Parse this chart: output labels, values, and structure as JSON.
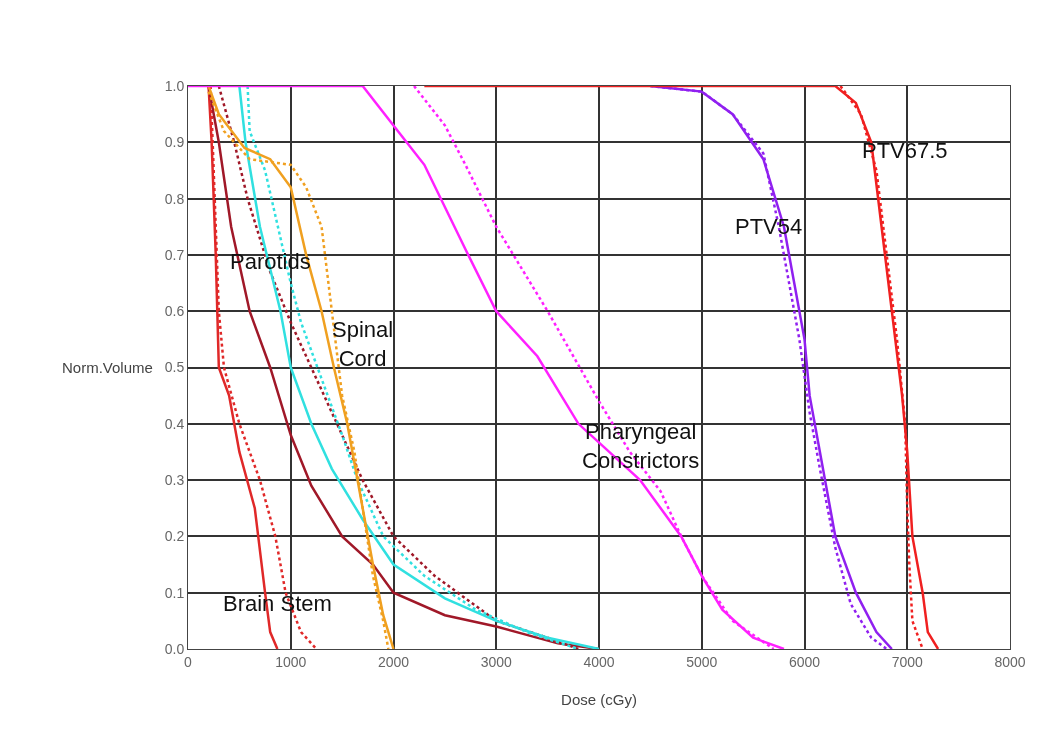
{
  "chart_data": {
    "type": "line",
    "xlabel": "Dose (cGy)",
    "ylabel": "Norm.Volume",
    "xlim": [
      0,
      8000
    ],
    "xticks": [
      0,
      1000,
      2000,
      3000,
      4000,
      5000,
      6000,
      7000,
      8000
    ],
    "ylim": [
      0,
      1
    ],
    "yticks": [
      {
        "value": 0,
        "label": "0.0"
      },
      0.1,
      0.2,
      0.3,
      0.4,
      0.5,
      0.6,
      0.7,
      0.8,
      0.9,
      {
        "value": 1,
        "label": "1.0"
      }
    ],
    "grid": true,
    "marker": "none",
    "series": [
      {
        "color": "#e02828",
        "line_style": "solid",
        "x": [
          200,
          230,
          270,
          300,
          400,
          500,
          650,
          750,
          800,
          870
        ],
        "values": [
          1.0,
          0.9,
          0.7,
          0.5,
          0.45,
          0.35,
          0.25,
          0.1,
          0.03,
          0.0
        ]
      },
      {
        "color": "#e02828",
        "line_style": "dotted",
        "x": [
          220,
          260,
          300,
          350,
          500,
          700,
          850,
          950,
          1100,
          1250
        ],
        "values": [
          1.0,
          0.8,
          0.6,
          0.5,
          0.4,
          0.3,
          0.2,
          0.1,
          0.03,
          0.0
        ]
      },
      {
        "color": "#a01828",
        "line_style": "solid",
        "x": [
          200,
          300,
          420,
          600,
          800,
          1000,
          1200,
          1500,
          1800,
          2000,
          2500,
          3000,
          3600,
          4000
        ],
        "values": [
          1.0,
          0.9,
          0.75,
          0.6,
          0.5,
          0.38,
          0.29,
          0.2,
          0.15,
          0.1,
          0.06,
          0.04,
          0.01,
          0.0
        ]
      },
      {
        "color": "#a01828",
        "line_style": "dotted",
        "x": [
          300,
          450,
          580,
          800,
          1000,
          1200,
          1500,
          1700,
          2000,
          2400,
          3000,
          3500,
          3800
        ],
        "values": [
          1.0,
          0.9,
          0.8,
          0.67,
          0.58,
          0.5,
          0.38,
          0.3,
          0.2,
          0.13,
          0.05,
          0.02,
          0.0
        ]
      },
      {
        "color": "#30e0e0",
        "line_style": "solid",
        "x": [
          500,
          560,
          700,
          900,
          1000,
          1200,
          1400,
          1700,
          2000,
          2500,
          3000,
          3500,
          4000
        ],
        "values": [
          1.0,
          0.9,
          0.75,
          0.6,
          0.5,
          0.4,
          0.32,
          0.23,
          0.15,
          0.09,
          0.05,
          0.02,
          0.0
        ]
      },
      {
        "color": "#30e0e0",
        "line_style": "dotted",
        "x": [
          580,
          600,
          750,
          850,
          1000,
          1100,
          1300,
          1500,
          1650,
          1900,
          2300,
          2800,
          3300,
          3800
        ],
        "values": [
          1.0,
          0.92,
          0.85,
          0.77,
          0.65,
          0.58,
          0.48,
          0.38,
          0.3,
          0.2,
          0.13,
          0.07,
          0.03,
          0.0
        ]
      },
      {
        "color": "#f0a020",
        "line_style": "solid",
        "x": [
          200,
          300,
          550,
          800,
          1000,
          1150,
          1300,
          1420,
          1550,
          1700,
          1800,
          1900,
          2000
        ],
        "values": [
          1.0,
          0.95,
          0.89,
          0.87,
          0.82,
          0.7,
          0.6,
          0.5,
          0.4,
          0.25,
          0.15,
          0.06,
          0.0
        ]
      },
      {
        "color": "#f0a020",
        "line_style": "dotted",
        "x": [
          200,
          350,
          600,
          1000,
          1150,
          1300,
          1400,
          1500,
          1620,
          1700,
          1800,
          1900,
          1950
        ],
        "values": [
          0.99,
          0.92,
          0.87,
          0.86,
          0.82,
          0.75,
          0.6,
          0.45,
          0.35,
          0.25,
          0.13,
          0.05,
          0.0
        ]
      },
      {
        "color": "#ff20ff",
        "line_style": "solid",
        "x": [
          0,
          1700,
          2000,
          2300,
          2700,
          3000,
          3400,
          3800,
          4400,
          4800,
          5000,
          5200,
          5500,
          5800
        ],
        "values": [
          1.0,
          1.0,
          0.93,
          0.86,
          0.71,
          0.6,
          0.52,
          0.4,
          0.3,
          0.2,
          0.13,
          0.07,
          0.02,
          0.0
        ]
      },
      {
        "color": "#ff20ff",
        "line_style": "dotted",
        "x": [
          2200,
          2500,
          2700,
          3000,
          3500,
          4000,
          4300,
          4600,
          4800,
          5000,
          5300,
          5700
        ],
        "values": [
          1.0,
          0.93,
          0.86,
          0.75,
          0.6,
          0.44,
          0.35,
          0.28,
          0.2,
          0.13,
          0.05,
          0.0
        ]
      },
      {
        "color": "#9020f0",
        "line_style": "solid",
        "x": [
          4500,
          5000,
          5300,
          5600,
          5800,
          5900,
          6000,
          6050,
          6150,
          6300,
          6500,
          6700,
          6850
        ],
        "values": [
          1.0,
          0.99,
          0.95,
          0.87,
          0.75,
          0.65,
          0.55,
          0.45,
          0.35,
          0.2,
          0.1,
          0.03,
          0.0
        ]
      },
      {
        "color": "#9020f0",
        "line_style": "dotted",
        "x": [
          4500,
          5000,
          5300,
          5600,
          5750,
          5850,
          5950,
          6050,
          6150,
          6300,
          6450,
          6650,
          6800
        ],
        "values": [
          1.0,
          0.99,
          0.95,
          0.88,
          0.75,
          0.65,
          0.55,
          0.42,
          0.32,
          0.18,
          0.08,
          0.02,
          0.0
        ]
      },
      {
        "color": "#f02020",
        "line_style": "solid",
        "x": [
          2300,
          6300,
          6500,
          6650,
          6750,
          6850,
          6950,
          7000,
          7050,
          7150,
          7200,
          7300
        ],
        "values": [
          1.0,
          1.0,
          0.97,
          0.9,
          0.75,
          0.6,
          0.45,
          0.35,
          0.2,
          0.1,
          0.03,
          0.0
        ]
      },
      {
        "color": "#f02020",
        "line_style": "dotted",
        "x": [
          6350,
          6550,
          6700,
          6800,
          6900,
          6980,
          7000,
          7020,
          7050,
          7150
        ],
        "values": [
          1.0,
          0.95,
          0.85,
          0.7,
          0.55,
          0.4,
          0.25,
          0.15,
          0.05,
          0.0
        ]
      }
    ],
    "annotations": [
      "Parotids",
      "Spinal\nCord",
      "Brain Stem",
      "Pharyngeal\nConstrictors",
      "PTV54",
      "PTV67.5"
    ]
  }
}
